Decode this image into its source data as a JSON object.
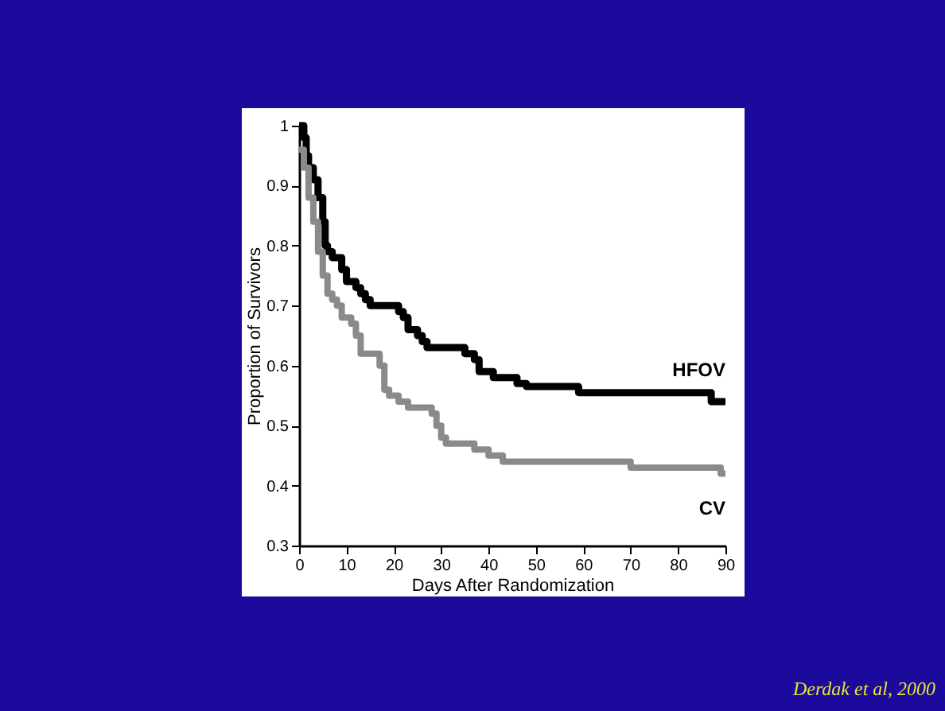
{
  "chart_data": {
    "type": "step",
    "xlabel": "Days After Randomization",
    "ylabel": "Proportion of Survivors",
    "xlim": [
      0,
      90
    ],
    "ylim": [
      0.3,
      1
    ],
    "xticks": [
      0,
      10,
      20,
      30,
      40,
      50,
      60,
      70,
      80,
      90
    ],
    "yticks": [
      0.3,
      0.4,
      0.5,
      0.6,
      0.7,
      0.8,
      0.9,
      1
    ],
    "grid": false,
    "legend": false,
    "annotations": [
      "Derdak et al, 2000"
    ],
    "series": [
      {
        "name": "HFOV",
        "color": "#000000",
        "x": [
          0,
          1,
          1.5,
          2,
          3,
          4,
          5,
          5.5,
          6,
          7,
          9,
          10,
          12,
          13,
          14,
          15,
          21,
          22,
          23,
          25,
          26,
          27,
          35,
          37,
          38,
          41,
          46,
          48,
          59,
          87,
          90
        ],
        "values": [
          1,
          0.98,
          0.95,
          0.93,
          0.91,
          0.88,
          0.84,
          0.8,
          0.79,
          0.78,
          0.76,
          0.74,
          0.73,
          0.72,
          0.71,
          0.7,
          0.69,
          0.68,
          0.66,
          0.65,
          0.64,
          0.63,
          0.62,
          0.61,
          0.59,
          0.58,
          0.57,
          0.565,
          0.555,
          0.54,
          0.54
        ]
      },
      {
        "name": "CV",
        "color": "#8a8a8a",
        "x": [
          0,
          1,
          2,
          3,
          4,
          5,
          6,
          7,
          8,
          9,
          11,
          12,
          13,
          17,
          18,
          19,
          21,
          23,
          28,
          29,
          30,
          31,
          37,
          40,
          43,
          70,
          89,
          90
        ],
        "values": [
          0.96,
          0.93,
          0.88,
          0.84,
          0.79,
          0.75,
          0.72,
          0.71,
          0.7,
          0.68,
          0.67,
          0.65,
          0.62,
          0.6,
          0.56,
          0.55,
          0.54,
          0.53,
          0.52,
          0.5,
          0.48,
          0.47,
          0.46,
          0.45,
          0.44,
          0.43,
          0.42,
          0.42
        ]
      }
    ]
  }
}
